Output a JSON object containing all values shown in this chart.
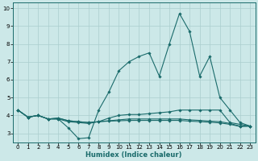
{
  "title": "",
  "xlabel": "Humidex (Indice chaleur)",
  "background_color": "#cce8e8",
  "grid_color": "#aacece",
  "line_color": "#1a6b6b",
  "xlim": [
    -0.5,
    23.5
  ],
  "ylim": [
    2.5,
    10.3
  ],
  "xtick_labels": [
    "0",
    "1",
    "2",
    "3",
    "4",
    "5",
    "6",
    "7",
    "8",
    "9",
    "10",
    "11",
    "12",
    "13",
    "14",
    "15",
    "16",
    "17",
    "18",
    "19",
    "20",
    "21",
    "22",
    "23"
  ],
  "ytick_labels": [
    "3",
    "4",
    "5",
    "6",
    "7",
    "8",
    "9",
    "10"
  ],
  "ytick_vals": [
    3,
    4,
    5,
    6,
    7,
    8,
    9,
    10
  ],
  "series": [
    [
      4.3,
      3.9,
      4.0,
      3.8,
      3.8,
      3.3,
      2.7,
      2.75,
      4.3,
      5.3,
      6.5,
      7.0,
      7.3,
      7.5,
      6.2,
      8.0,
      9.7,
      8.7,
      6.2,
      7.3,
      5.0,
      4.3,
      3.6,
      3.4
    ],
    [
      4.3,
      3.9,
      4.0,
      3.8,
      3.8,
      3.65,
      3.6,
      3.55,
      3.65,
      3.85,
      4.0,
      4.05,
      4.05,
      4.1,
      4.15,
      4.2,
      4.3,
      4.3,
      4.3,
      4.3,
      4.3,
      3.6,
      3.5,
      3.4
    ],
    [
      4.3,
      3.9,
      4.0,
      3.8,
      3.85,
      3.7,
      3.65,
      3.6,
      3.65,
      3.7,
      3.75,
      3.8,
      3.8,
      3.8,
      3.8,
      3.8,
      3.8,
      3.75,
      3.72,
      3.68,
      3.65,
      3.55,
      3.4,
      3.4
    ],
    [
      4.3,
      3.9,
      4.0,
      3.8,
      3.85,
      3.7,
      3.65,
      3.6,
      3.65,
      3.68,
      3.7,
      3.72,
      3.72,
      3.72,
      3.72,
      3.72,
      3.72,
      3.68,
      3.65,
      3.62,
      3.58,
      3.5,
      3.38,
      3.4
    ]
  ]
}
